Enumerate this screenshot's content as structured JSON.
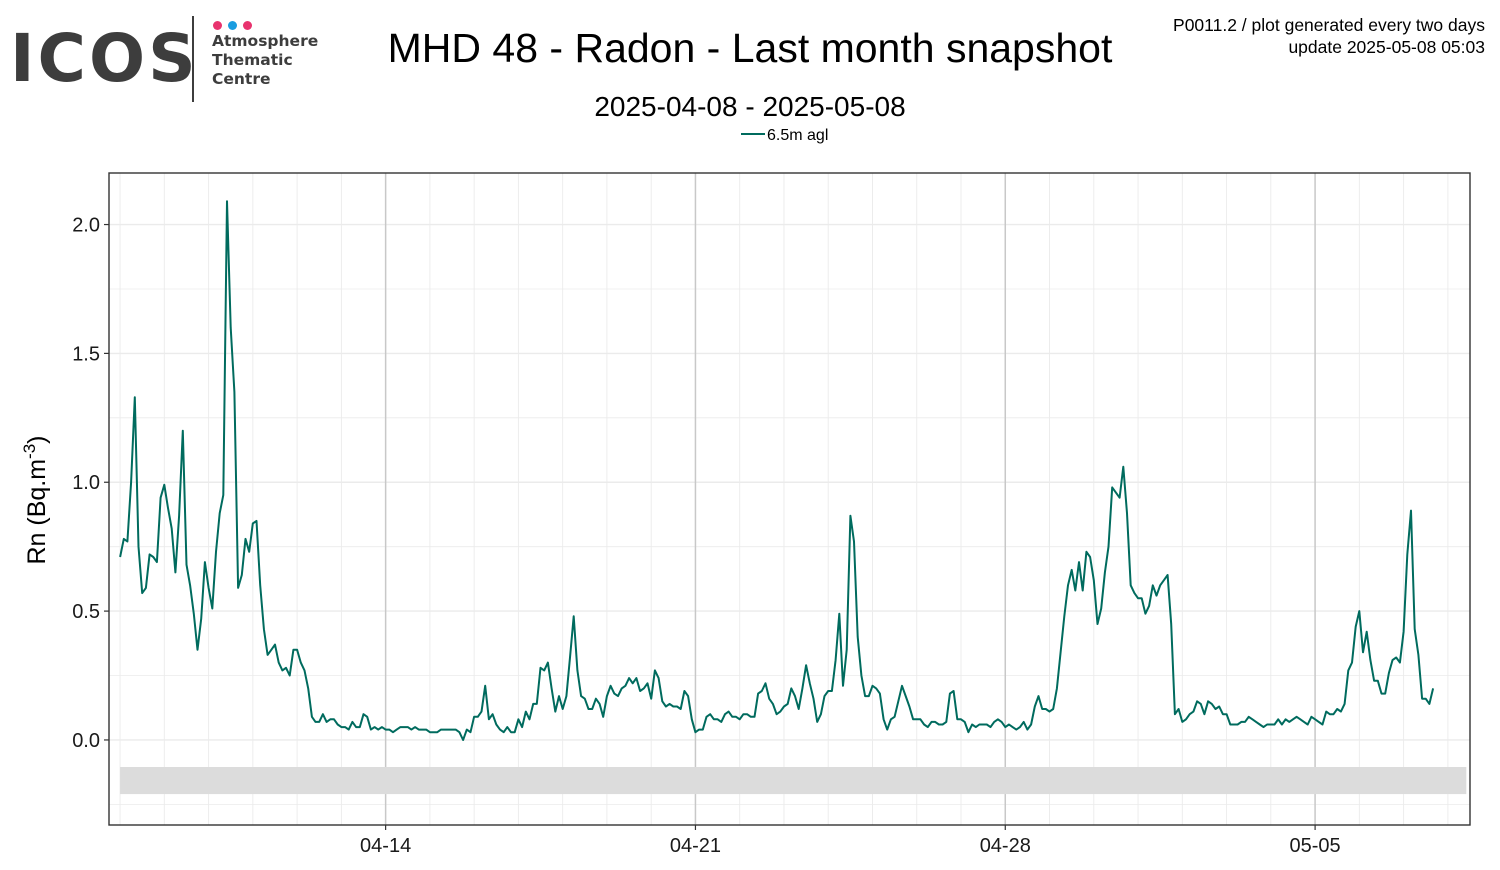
{
  "logo": {
    "wordmark": "ICOS",
    "subtitle_lines": [
      "Atmosphere",
      "Thematic",
      "Centre"
    ],
    "dot_colors": [
      "#e8336e",
      "#1a9de0",
      "#e8336e"
    ],
    "wordmark_color": "#3d3d3d"
  },
  "header": {
    "title": "MHD 48 - Radon - Last month snapshot",
    "subtitle": "2025-04-08 - 2025-05-08",
    "meta_line1": "P0011.2 / plot generated every two days",
    "meta_line2": "update  2025-05-08 05:03"
  },
  "chart_data": {
    "type": "line",
    "title": "MHD 48 - Radon - Last month snapshot",
    "subtitle": "2025-04-08 - 2025-05-08",
    "ylabel": "Rn (Bq.m",
    "ylabel_exponent": "-3",
    "ylabel_close": ")",
    "ylim": [
      -0.33,
      2.2
    ],
    "xlim": [
      "2025-04-07T18:00",
      "2025-05-08T12:00"
    ],
    "y_ticks": [
      0.0,
      0.5,
      1.0,
      1.5,
      2.0
    ],
    "y_tick_labels": [
      "0.0",
      "0.5",
      "1.0",
      "1.5",
      "2.0"
    ],
    "x_ticks": [
      "2025-04-14",
      "2025-04-21",
      "2025-04-28",
      "2025-05-05"
    ],
    "x_tick_labels": [
      "04-14",
      "04-21",
      "04-28",
      "05-05"
    ],
    "grid": true,
    "legend_position": "top",
    "background_band": [
      -0.21,
      -0.105
    ],
    "colors": {
      "series": "#006b5e",
      "band": "#dcdcdc",
      "grid": "#ebebeb",
      "major_vline": "#c8c8c8"
    },
    "series": [
      {
        "name": "6.5m agl",
        "start": "2025-04-08T00:00",
        "step_hours": 2,
        "values": [
          0.71,
          0.78,
          0.77,
          1.0,
          1.33,
          0.75,
          0.57,
          0.59,
          0.72,
          0.71,
          0.69,
          0.94,
          0.99,
          0.9,
          0.82,
          0.65,
          0.87,
          1.2,
          0.68,
          0.6,
          0.49,
          0.35,
          0.47,
          0.69,
          0.59,
          0.51,
          0.73,
          0.88,
          0.95,
          2.09,
          1.6,
          1.35,
          0.59,
          0.64,
          0.78,
          0.73,
          0.84,
          0.85,
          0.6,
          0.43,
          0.33,
          0.35,
          0.37,
          0.3,
          0.27,
          0.28,
          0.25,
          0.35,
          0.35,
          0.3,
          0.27,
          0.2,
          0.09,
          0.07,
          0.07,
          0.1,
          0.07,
          0.08,
          0.08,
          0.06,
          0.05,
          0.05,
          0.04,
          0.07,
          0.05,
          0.05,
          0.1,
          0.09,
          0.04,
          0.05,
          0.04,
          0.05,
          0.04,
          0.04,
          0.03,
          0.04,
          0.05,
          0.05,
          0.05,
          0.04,
          0.05,
          0.04,
          0.04,
          0.04,
          0.03,
          0.03,
          0.03,
          0.04,
          0.04,
          0.04,
          0.04,
          0.04,
          0.03,
          0.0,
          0.04,
          0.03,
          0.09,
          0.09,
          0.11,
          0.21,
          0.08,
          0.1,
          0.06,
          0.04,
          0.03,
          0.05,
          0.03,
          0.03,
          0.08,
          0.05,
          0.11,
          0.08,
          0.14,
          0.14,
          0.28,
          0.27,
          0.3,
          0.2,
          0.11,
          0.17,
          0.12,
          0.17,
          0.32,
          0.48,
          0.27,
          0.17,
          0.16,
          0.12,
          0.12,
          0.16,
          0.14,
          0.09,
          0.17,
          0.21,
          0.18,
          0.17,
          0.2,
          0.21,
          0.24,
          0.22,
          0.24,
          0.19,
          0.2,
          0.22,
          0.16,
          0.27,
          0.24,
          0.15,
          0.13,
          0.14,
          0.13,
          0.13,
          0.12,
          0.19,
          0.17,
          0.08,
          0.03,
          0.04,
          0.04,
          0.09,
          0.1,
          0.08,
          0.08,
          0.07,
          0.1,
          0.11,
          0.09,
          0.09,
          0.08,
          0.1,
          0.1,
          0.09,
          0.09,
          0.18,
          0.19,
          0.22,
          0.16,
          0.14,
          0.1,
          0.11,
          0.13,
          0.14,
          0.2,
          0.17,
          0.12,
          0.2,
          0.29,
          0.22,
          0.16,
          0.07,
          0.1,
          0.17,
          0.19,
          0.19,
          0.31,
          0.49,
          0.21,
          0.35,
          0.87,
          0.77,
          0.4,
          0.25,
          0.17,
          0.17,
          0.21,
          0.2,
          0.18,
          0.08,
          0.04,
          0.08,
          0.09,
          0.15,
          0.21,
          0.17,
          0.13,
          0.08,
          0.08,
          0.08,
          0.06,
          0.05,
          0.07,
          0.07,
          0.06,
          0.06,
          0.07,
          0.18,
          0.19,
          0.08,
          0.08,
          0.07,
          0.03,
          0.06,
          0.05,
          0.06,
          0.06,
          0.06,
          0.05,
          0.07,
          0.08,
          0.07,
          0.05,
          0.06,
          0.05,
          0.04,
          0.05,
          0.07,
          0.04,
          0.06,
          0.13,
          0.17,
          0.12,
          0.12,
          0.11,
          0.12,
          0.2,
          0.34,
          0.48,
          0.6,
          0.66,
          0.58,
          0.69,
          0.58,
          0.73,
          0.71,
          0.62,
          0.45,
          0.51,
          0.65,
          0.75,
          0.98,
          0.96,
          0.94,
          1.06,
          0.88,
          0.6,
          0.57,
          0.55,
          0.55,
          0.49,
          0.52,
          0.6,
          0.56,
          0.6,
          0.62,
          0.64,
          0.45,
          0.1,
          0.12,
          0.07,
          0.08,
          0.1,
          0.11,
          0.15,
          0.14,
          0.1,
          0.15,
          0.14,
          0.12,
          0.13,
          0.1,
          0.1,
          0.06,
          0.06,
          0.06,
          0.07,
          0.07,
          0.09,
          0.08,
          0.07,
          0.06,
          0.05,
          0.06,
          0.06,
          0.06,
          0.08,
          0.06,
          0.08,
          0.07,
          0.08,
          0.09,
          0.08,
          0.07,
          0.06,
          0.09,
          0.08,
          0.07,
          0.06,
          0.11,
          0.1,
          0.1,
          0.12,
          0.11,
          0.14,
          0.27,
          0.3,
          0.44,
          0.5,
          0.34,
          0.42,
          0.31,
          0.23,
          0.23,
          0.18,
          0.18,
          0.26,
          0.31,
          0.32,
          0.3,
          0.42,
          0.72,
          0.89,
          0.43,
          0.33,
          0.16,
          0.16,
          0.14,
          0.2
        ]
      }
    ]
  }
}
